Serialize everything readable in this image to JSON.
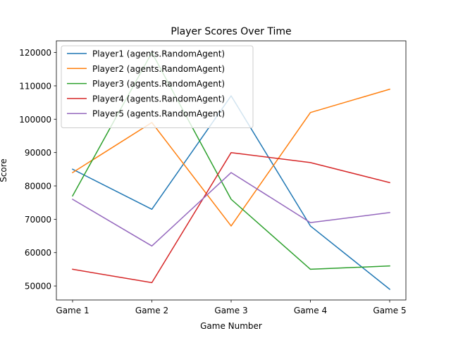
{
  "chart_data": {
    "type": "line",
    "title": "Player Scores Over Time",
    "xlabel": "Game Number",
    "ylabel": "Score",
    "categories": [
      "Game 1",
      "Game 2",
      "Game 3",
      "Game 4",
      "Game 5"
    ],
    "ylim": [
      45800,
      123500
    ],
    "yticks": [
      50000,
      60000,
      70000,
      80000,
      90000,
      100000,
      110000,
      120000
    ],
    "ytick_labels": [
      "50000",
      "60000",
      "70000",
      "80000",
      "90000",
      "100000",
      "110000",
      "120000"
    ],
    "grid": false,
    "legend_position": "top-left",
    "series": [
      {
        "name": "Player1 (agents.RandomAgent)",
        "color": "#1f77b4",
        "values": [
          85000,
          73000,
          107000,
          68000,
          49000
        ]
      },
      {
        "name": "Player2 (agents.RandomAgent)",
        "color": "#ff7f0e",
        "values": [
          84000,
          99000,
          68000,
          102000,
          109000
        ]
      },
      {
        "name": "Player3 (agents.RandomAgent)",
        "color": "#2ca02c",
        "values": [
          77000,
          120000,
          76000,
          55000,
          56000
        ]
      },
      {
        "name": "Player4 (agents.RandomAgent)",
        "color": "#d62728",
        "values": [
          55000,
          51000,
          90000,
          87000,
          81000
        ]
      },
      {
        "name": "Player5 (agents.RandomAgent)",
        "color": "#9467bd",
        "values": [
          76000,
          62000,
          84000,
          69000,
          72000
        ]
      }
    ]
  }
}
